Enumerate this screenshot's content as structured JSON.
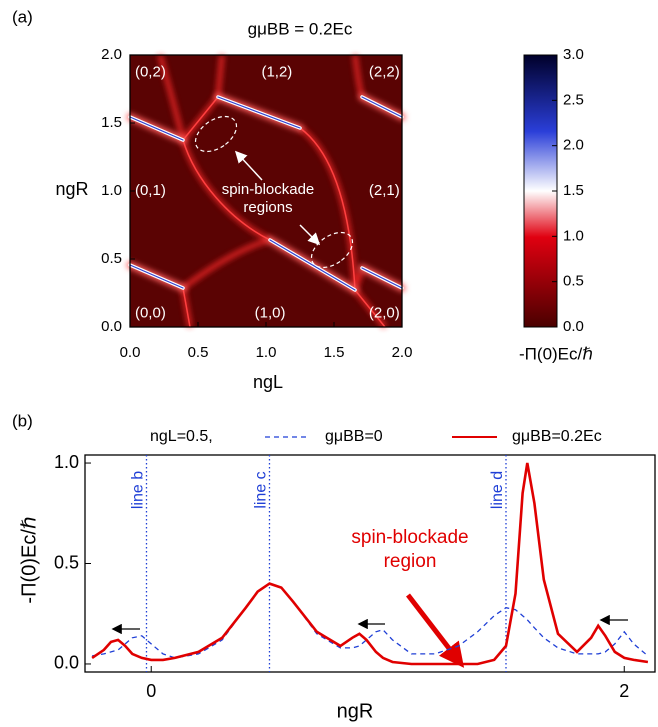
{
  "chart_data": [
    {
      "type": "heatmap",
      "panel_label": "(a)",
      "title": "gμBB = 0.2Ec",
      "xlabel": "ngL",
      "ylabel": "ngR",
      "xlim": [
        0,
        2
      ],
      "ylim": [
        0,
        2
      ],
      "xticks": [
        {
          "value": 0,
          "label": "0.0"
        },
        0.5,
        {
          "value": 1,
          "label": "1.0"
        },
        1.5,
        {
          "value": 2,
          "label": "2.0"
        }
      ],
      "yticks": [
        {
          "value": 0,
          "label": "0.0"
        },
        0.5,
        {
          "value": 1,
          "label": "1.0"
        },
        1.5,
        {
          "value": 2,
          "label": "2.0"
        }
      ],
      "region_labels": [
        "(0,2)",
        "(1,2)",
        "(2,2)",
        "(0,1)",
        "(2,1)",
        "(0,0)",
        "(1,0)",
        "(2,0)"
      ],
      "annotation": {
        "lines": [
          "spin-blockade",
          "regions"
        ]
      },
      "colorbar": {
        "label": "-Π(0)Ec/ℏ",
        "clim": [
          0,
          3
        ],
        "ticks": [
          {
            "value": 0,
            "label": "0.0"
          },
          0.5,
          {
            "value": 1,
            "label": "1.0"
          },
          1.5,
          {
            "value": 2,
            "label": "2.0"
          },
          2.5,
          {
            "value": 3,
            "label": "3.0"
          }
        ]
      }
    },
    {
      "type": "line",
      "panel_label": "(b)",
      "legend_title": "ngL=0.5,",
      "xlabel": "ngR",
      "ylabel": "-Π(0)Ec/ℏ",
      "xlim": [
        -0.28,
        2.13
      ],
      "ylim": [
        -0.04,
        1.04
      ],
      "xticks": [
        0,
        2
      ],
      "yticks": [
        {
          "value": 0,
          "label": "0.0"
        },
        0.5,
        {
          "value": 1,
          "label": "1.0"
        }
      ],
      "x": [
        -0.25,
        -0.2,
        -0.17,
        -0.14,
        -0.11,
        -0.08,
        -0.04,
        0,
        0.05,
        0.1,
        0.2,
        0.3,
        0.4,
        0.45,
        0.5,
        0.55,
        0.6,
        0.7,
        0.8,
        0.85,
        0.88,
        0.91,
        0.95,
        0.98,
        1.02,
        1.1,
        1.2,
        1.3,
        1.38,
        1.45,
        1.5,
        1.54,
        1.57,
        1.59,
        1.62,
        1.66,
        1.72,
        1.8,
        1.86,
        1.89,
        1.92,
        1.96,
        2.0,
        2.04,
        2.1
      ],
      "series": [
        {
          "name": "gμBB=0",
          "color": "#1f3fd6",
          "dashed": true,
          "values": [
            0.04,
            0.05,
            0.06,
            0.07,
            0.1,
            0.13,
            0.14,
            0.1,
            0.05,
            0.03,
            0.05,
            0.12,
            0.28,
            0.36,
            0.4,
            0.38,
            0.31,
            0.15,
            0.08,
            0.08,
            0.09,
            0.12,
            0.16,
            0.17,
            0.12,
            0.05,
            0.05,
            0.09,
            0.16,
            0.24,
            0.28,
            0.27,
            0.24,
            0.22,
            0.18,
            0.13,
            0.08,
            0.05,
            0.05,
            0.05,
            0.06,
            0.1,
            0.16,
            0.1,
            0.04
          ]
        },
        {
          "name": "gμBB=0.2Ec",
          "color": "#e00000",
          "dashed": false,
          "values": [
            0.03,
            0.07,
            0.11,
            0.12,
            0.09,
            0.05,
            0.03,
            0.02,
            0.02,
            0.03,
            0.06,
            0.13,
            0.28,
            0.36,
            0.4,
            0.38,
            0.31,
            0.16,
            0.09,
            0.13,
            0.15,
            0.12,
            0.06,
            0.03,
            0.01,
            0,
            0,
            0,
            0,
            0.02,
            0.09,
            0.35,
            0.85,
            1.0,
            0.8,
            0.42,
            0.15,
            0.06,
            0.13,
            0.19,
            0.14,
            0.06,
            0.03,
            0.02,
            0.01
          ]
        }
      ],
      "vlines": [
        {
          "x": -0.02,
          "label": "line b"
        },
        {
          "x": 0.5,
          "label": "line c"
        },
        {
          "x": 1.5,
          "label": "line d"
        }
      ],
      "annotation": {
        "lines": [
          "spin-blockade",
          "region"
        ],
        "color": "#e00000"
      }
    }
  ]
}
